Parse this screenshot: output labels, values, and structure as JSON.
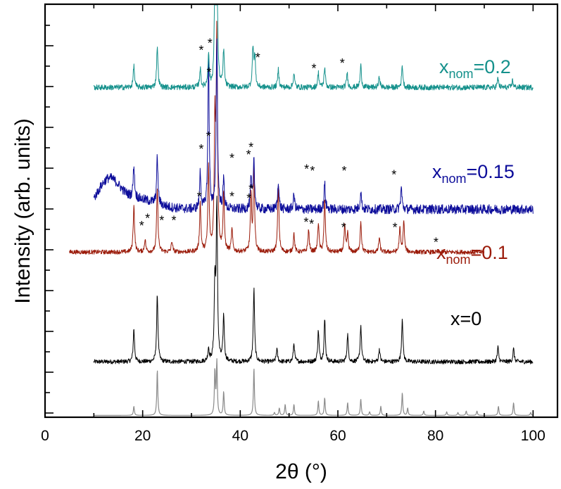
{
  "chart_data": {
    "type": "line",
    "xlabel": "2θ (°)",
    "ylabel": "Intensity (arb. units)",
    "xlim": [
      0,
      105
    ],
    "x_ticks": [
      0,
      20,
      40,
      60,
      80,
      100
    ],
    "y_tick_labels": "none",
    "grid": false,
    "legend": "none",
    "series": [
      {
        "name": "x=0",
        "label_main": "x=0",
        "label_sub": "",
        "label_tail": "",
        "color": "#000000",
        "x_range": [
          10,
          100
        ],
        "baseline": 0.0,
        "noise": 0.12,
        "peaks": [
          [
            18.2,
            0.9
          ],
          [
            23.0,
            1.85
          ],
          [
            33.5,
            0.35
          ],
          [
            34.8,
            2.05
          ],
          [
            35.2,
            4.2
          ],
          [
            36.6,
            1.25
          ],
          [
            42.8,
            2.0
          ],
          [
            47.5,
            0.35
          ],
          [
            51.0,
            0.5
          ],
          [
            56.0,
            0.85
          ],
          [
            57.3,
            1.15
          ],
          [
            62.0,
            0.75
          ],
          [
            64.7,
            1.0
          ],
          [
            68.5,
            0.35
          ],
          [
            73.2,
            1.2
          ],
          [
            92.8,
            0.4
          ],
          [
            96.0,
            0.35
          ]
        ],
        "stars": []
      },
      {
        "name": "xnom=0.1",
        "label_main": "x",
        "label_sub": "nom",
        "label_tail": "=0.1",
        "color": "#9b1b0a",
        "x_range": [
          5,
          90
        ],
        "baseline": 3.0,
        "noise": 0.12,
        "peaks": [
          [
            18.2,
            1.3
          ],
          [
            20.5,
            0.35
          ],
          [
            23.0,
            1.75
          ],
          [
            26.0,
            0.3
          ],
          [
            31.8,
            1.35
          ],
          [
            33.5,
            2.3
          ],
          [
            34.8,
            3.4
          ],
          [
            35.2,
            5.8
          ],
          [
            36.6,
            1.6
          ],
          [
            38.3,
            0.6
          ],
          [
            42.2,
            1.5
          ],
          [
            42.8,
            2.3
          ],
          [
            47.8,
            1.85
          ],
          [
            51.0,
            0.5
          ],
          [
            54.0,
            0.6
          ],
          [
            56.0,
            0.8
          ],
          [
            57.3,
            1.45
          ],
          [
            61.4,
            0.7
          ],
          [
            62.0,
            0.5
          ],
          [
            64.7,
            0.85
          ],
          [
            68.5,
            0.4
          ],
          [
            72.7,
            0.65
          ],
          [
            73.5,
            0.85
          ]
        ],
        "stars": [
          [
            19.8,
            3.85
          ],
          [
            21.0,
            4.05
          ],
          [
            23.9,
            4.0
          ],
          [
            26.4,
            4.0
          ],
          [
            31.6,
            4.65
          ],
          [
            33.5,
            6.3
          ],
          [
            38.3,
            4.65
          ],
          [
            41.8,
            4.6
          ],
          [
            42.2,
            4.85
          ],
          [
            53.5,
            3.95
          ],
          [
            54.6,
            3.9
          ],
          [
            61.2,
            3.8
          ],
          [
            71.7,
            3.8
          ],
          [
            80.1,
            3.4
          ]
        ]
      },
      {
        "name": "xnom=0.15",
        "label_main": "x",
        "label_sub": "nom",
        "label_tail": "=0.15",
        "color": "#0c0c9a",
        "x_range": [
          10,
          100
        ],
        "baseline": 4.15,
        "noise": 0.26,
        "hump": [
          [
            13,
            0.7,
            3.0
          ],
          [
            18,
            0.3,
            6.0
          ]
        ],
        "peaks": [
          [
            18.2,
            0.9
          ],
          [
            23.0,
            1.3
          ],
          [
            31.8,
            1.0
          ],
          [
            33.5,
            4.2
          ],
          [
            35.2,
            4.7
          ],
          [
            36.6,
            0.8
          ],
          [
            42.2,
            0.8
          ],
          [
            42.8,
            1.4
          ],
          [
            47.8,
            0.8
          ],
          [
            51.0,
            0.4
          ],
          [
            57.3,
            0.7
          ],
          [
            64.7,
            0.5
          ],
          [
            73.0,
            0.6
          ]
        ],
        "stars": [
          [
            32.0,
            5.95
          ],
          [
            33.6,
            8.05
          ],
          [
            38.3,
            5.7
          ],
          [
            41.7,
            5.8
          ],
          [
            42.2,
            6.0
          ],
          [
            53.6,
            5.4
          ],
          [
            54.8,
            5.35
          ],
          [
            61.3,
            5.35
          ],
          [
            71.5,
            5.25
          ]
        ]
      },
      {
        "name": "xnom=0.2",
        "label_main": "x",
        "label_sub": "nom",
        "label_tail": "=0.2",
        "color": "#15918c",
        "x_range": [
          10,
          100
        ],
        "baseline": 7.5,
        "noise": 0.15,
        "peaks": [
          [
            18.2,
            0.6
          ],
          [
            23.0,
            1.15
          ],
          [
            31.8,
            0.5
          ],
          [
            33.5,
            0.9
          ],
          [
            34.8,
            2.5
          ],
          [
            35.2,
            4.0
          ],
          [
            36.6,
            1.0
          ],
          [
            42.6,
            1.1
          ],
          [
            43.0,
            0.8
          ],
          [
            47.8,
            0.5
          ],
          [
            51.0,
            0.4
          ],
          [
            56.0,
            0.4
          ],
          [
            57.3,
            0.55
          ],
          [
            61.9,
            0.4
          ],
          [
            64.7,
            0.6
          ],
          [
            68.5,
            0.3
          ],
          [
            73.2,
            0.6
          ],
          [
            92.8,
            0.25
          ],
          [
            95.8,
            0.2
          ]
        ],
        "stars": [
          [
            32.0,
            8.65
          ],
          [
            33.8,
            8.85
          ],
          [
            43.6,
            8.45
          ],
          [
            55.1,
            8.15
          ],
          [
            60.9,
            8.3
          ]
        ]
      },
      {
        "name": "reference",
        "label_main": "",
        "label_sub": "",
        "label_tail": "",
        "color": "#8a8a8a",
        "x_range": [
          10,
          100
        ],
        "baseline": -1.45,
        "noise": 0.0,
        "width": 0.12,
        "peaks": [
          [
            18.2,
            0.25
          ],
          [
            23.0,
            1.25
          ],
          [
            34.8,
            1.2
          ],
          [
            35.2,
            1.45
          ],
          [
            36.6,
            0.65
          ],
          [
            42.8,
            1.3
          ],
          [
            47.0,
            0.08
          ],
          [
            48.0,
            0.2
          ],
          [
            49.2,
            0.3
          ],
          [
            51.0,
            0.3
          ],
          [
            56.0,
            0.4
          ],
          [
            57.3,
            0.48
          ],
          [
            62.0,
            0.35
          ],
          [
            64.7,
            0.45
          ],
          [
            66.5,
            0.1
          ],
          [
            68.8,
            0.25
          ],
          [
            73.2,
            0.62
          ],
          [
            74.3,
            0.2
          ],
          [
            77.6,
            0.12
          ],
          [
            82.3,
            0.1
          ],
          [
            84.6,
            0.08
          ],
          [
            86.3,
            0.12
          ],
          [
            88.5,
            0.12
          ],
          [
            92.9,
            0.25
          ],
          [
            96.0,
            0.35
          ],
          [
            99.5,
            0.08
          ]
        ],
        "stars": []
      }
    ],
    "ylim": [
      -1.5,
      9.8
    ]
  }
}
